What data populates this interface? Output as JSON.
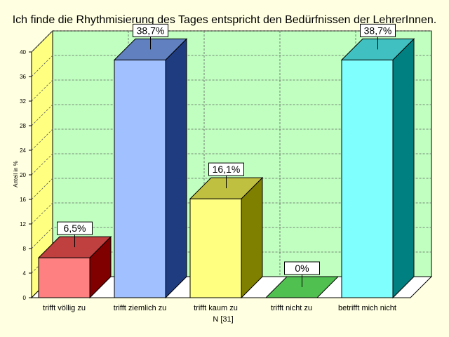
{
  "chart_data": {
    "type": "bar",
    "title": "Ich finde die Rhythmisierung des Tages entspricht den Bedürfnissen der LehrerInnen.",
    "ylabel": "Anteil in %",
    "xlabel": "N [31]",
    "ylim": [
      0,
      40
    ],
    "yticks": [
      0,
      4,
      8,
      12,
      16,
      20,
      24,
      28,
      32,
      36,
      40
    ],
    "grid": true,
    "categories": [
      "trifft völlig zu",
      "trifft ziemlich zu",
      "trifft kaum zu",
      "trifft nicht zu",
      "betrifft mich nicht"
    ],
    "values": [
      6.5,
      38.7,
      16.1,
      0,
      38.7
    ],
    "value_labels": [
      "6,5%",
      "38,7%",
      "16,1%",
      "0%",
      "38,7%"
    ],
    "colors": {
      "background": "#ffffe1",
      "plot_back": "#c0ffc0",
      "side_wall": "#ffff80",
      "floor": "#ffffff",
      "bars": [
        {
          "front": "#ff8080",
          "side": "#800000",
          "top": "#c04040"
        },
        {
          "front": "#a0c0ff",
          "side": "#203c80",
          "top": "#6080c0"
        },
        {
          "front": "#ffff80",
          "side": "#808000",
          "top": "#c0c040"
        },
        {
          "front": "#40c040",
          "side": "#208020",
          "top": "#50c050"
        },
        {
          "front": "#80ffff",
          "side": "#008080",
          "top": "#40c0c0"
        }
      ]
    }
  }
}
